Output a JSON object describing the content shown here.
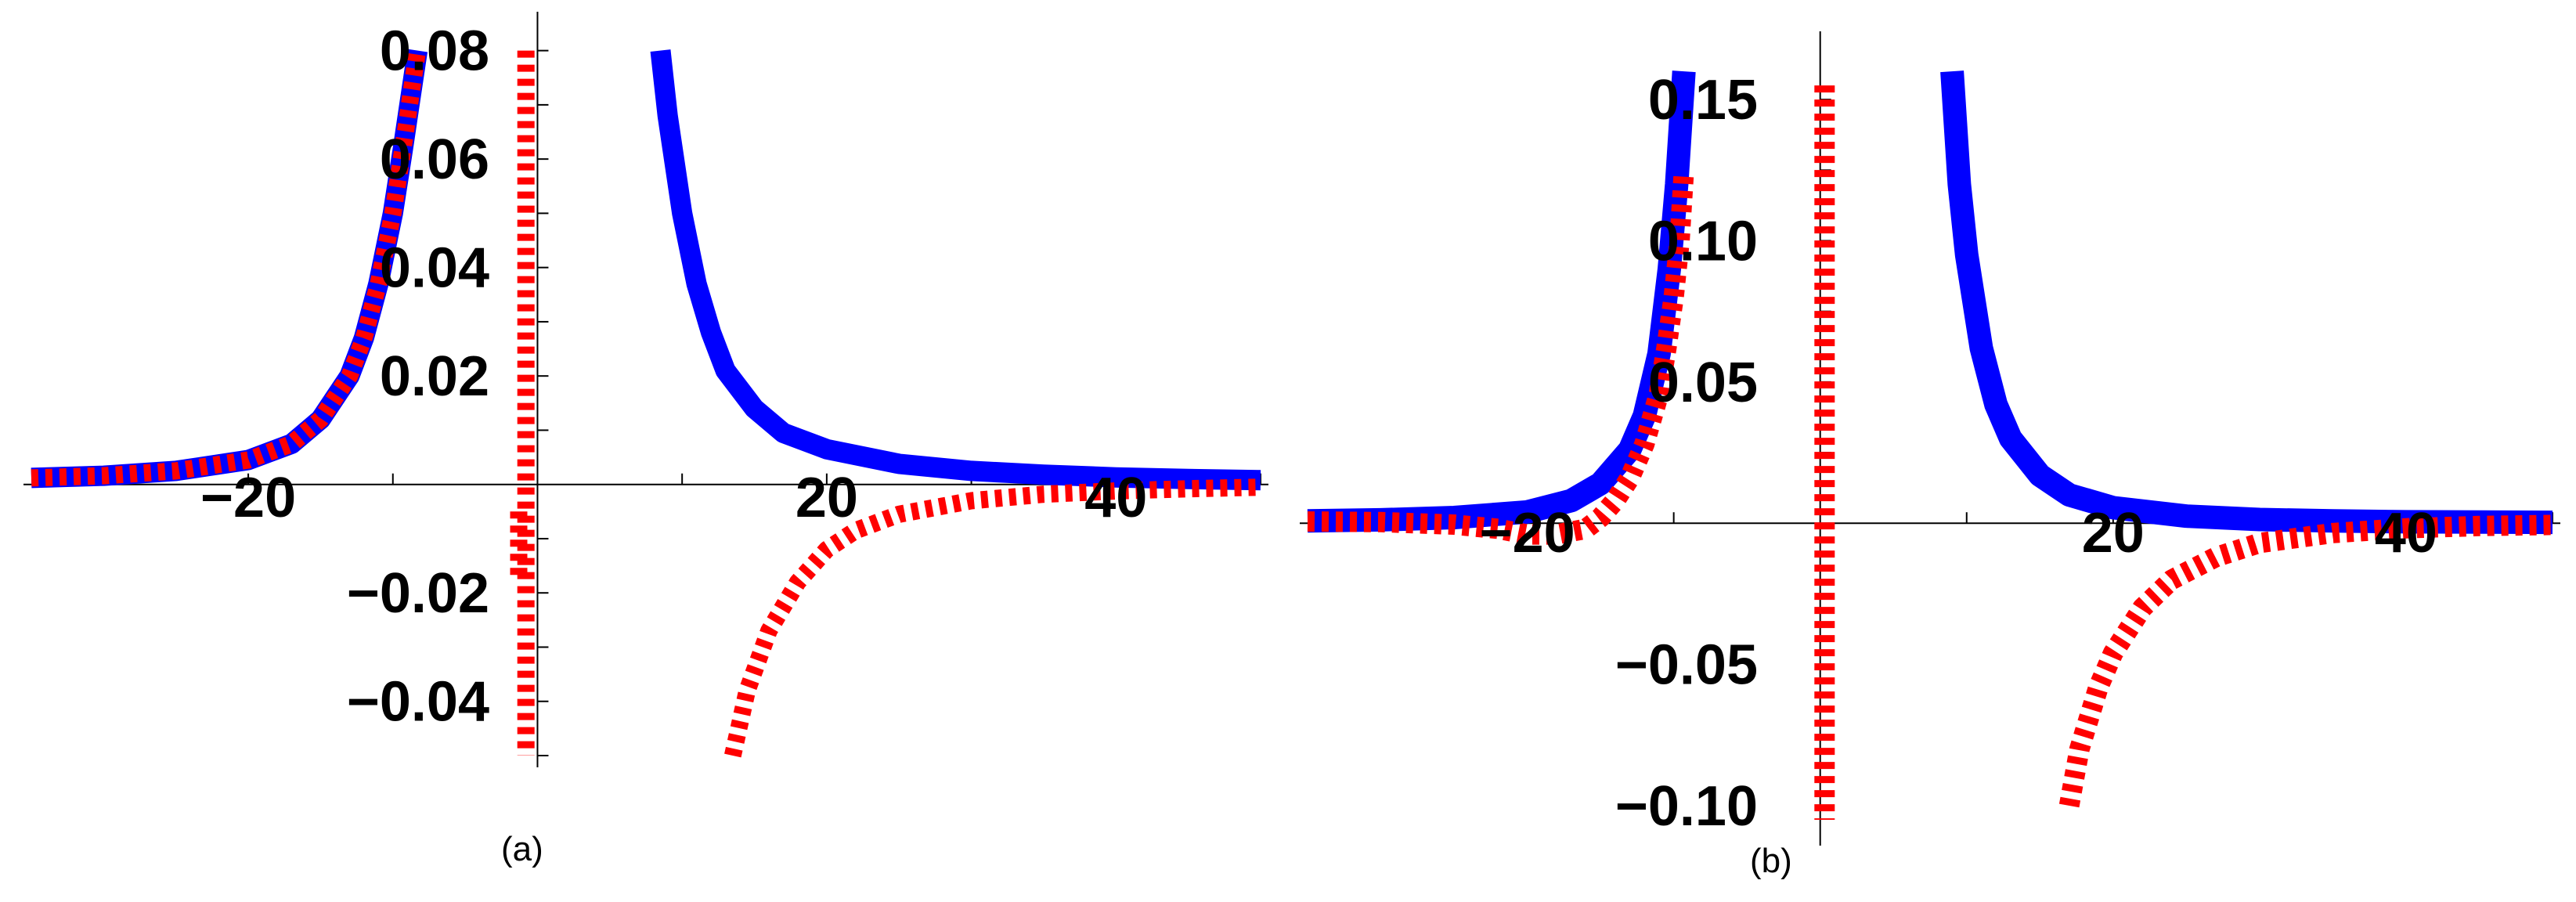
{
  "chart_data": [
    {
      "type": "line",
      "caption": "(a)",
      "xlim": [
        -35,
        50
      ],
      "ylim": [
        -0.05,
        0.085
      ],
      "xticks": [
        -20,
        20,
        40
      ],
      "xtick_labels": [
        "−20",
        "20",
        "40"
      ],
      "yticks": [
        -0.04,
        -0.02,
        0.02,
        0.04,
        0.06,
        0.08
      ],
      "ytick_labels": [
        "−0.04",
        "−0.02",
        "0.02",
        "0.04",
        "0.06",
        "0.08"
      ],
      "series": [
        {
          "style": "solid",
          "color": "#0000ff",
          "segments": [
            [
              [
                -35,
                0.0012
              ],
              [
                -30,
                0.0016
              ],
              [
                -25,
                0.0025
              ],
              [
                -20,
                0.0045
              ],
              [
                -17,
                0.0075
              ],
              [
                -15,
                0.012
              ],
              [
                -13,
                0.02
              ],
              [
                -12,
                0.027
              ],
              [
                -11,
                0.037
              ],
              [
                -10,
                0.05
              ],
              [
                -9.3,
                0.062
              ],
              [
                -8.8,
                0.071
              ],
              [
                -8.3,
                0.08
              ]
            ],
            [
              [
                8.5,
                0.08
              ],
              [
                9,
                0.068
              ],
              [
                10,
                0.05
              ],
              [
                11,
                0.037
              ],
              [
                12,
                0.028
              ],
              [
                13,
                0.021
              ],
              [
                15,
                0.014
              ],
              [
                17,
                0.0095
              ],
              [
                20,
                0.0065
              ],
              [
                25,
                0.0038
              ],
              [
                30,
                0.0025
              ],
              [
                35,
                0.0018
              ],
              [
                40,
                0.0013
              ],
              [
                45,
                0.001
              ],
              [
                50,
                0.0008
              ]
            ]
          ]
        },
        {
          "style": "dotted",
          "color": "#ff0000",
          "segments": [
            [
              [
                -35,
                0.0012
              ],
              [
                -30,
                0.0016
              ],
              [
                -25,
                0.0025
              ],
              [
                -20,
                0.0045
              ],
              [
                -17,
                0.0075
              ],
              [
                -15,
                0.012
              ],
              [
                -13,
                0.02
              ],
              [
                -12,
                0.027
              ],
              [
                -11,
                0.037
              ],
              [
                -10,
                0.05
              ],
              [
                -9.3,
                0.062
              ],
              [
                -8.8,
                0.071
              ],
              [
                -8.3,
                0.08
              ]
            ],
            [
              [
                -0.8,
                0.08
              ],
              [
                -0.8,
                -0.05
              ]
            ],
            [
              [
                -1.3,
                -0.005
              ],
              [
                -1.3,
                -0.017
              ]
            ],
            [
              [
                13.5,
                -0.05
              ],
              [
                14.5,
                -0.038
              ],
              [
                16,
                -0.027
              ],
              [
                18,
                -0.018
              ],
              [
                20,
                -0.012
              ],
              [
                22,
                -0.0085
              ],
              [
                25,
                -0.0055
              ],
              [
                30,
                -0.003
              ],
              [
                35,
                -0.0018
              ],
              [
                40,
                -0.0012
              ],
              [
                45,
                -0.0008
              ],
              [
                50,
                -0.0005
              ]
            ]
          ]
        }
      ]
    },
    {
      "type": "line",
      "caption": "(b)",
      "xlim": [
        -35,
        50
      ],
      "ylim": [
        -0.11,
        0.17
      ],
      "xticks": [
        -20,
        20,
        40
      ],
      "xtick_labels": [
        "−20",
        "20",
        "40"
      ],
      "yticks": [
        -0.1,
        -0.05,
        0.05,
        0.1,
        0.15
      ],
      "ytick_labels": [
        "−0.10",
        "−0.05",
        "0.05",
        "0.10",
        "0.15"
      ],
      "series": [
        {
          "style": "solid",
          "color": "#0000ff",
          "segments": [
            [
              [
                -35,
                0.0008
              ],
              [
                -30,
                0.0012
              ],
              [
                -25,
                0.002
              ],
              [
                -20,
                0.004
              ],
              [
                -17,
                0.008
              ],
              [
                -15,
                0.014
              ],
              [
                -13,
                0.026
              ],
              [
                -12,
                0.038
              ],
              [
                -11,
                0.06
              ],
              [
                -10.3,
                0.09
              ],
              [
                -9.8,
                0.12
              ],
              [
                -9.3,
                0.16
              ]
            ],
            [
              [
                9,
                0.16
              ],
              [
                9.5,
                0.12
              ],
              [
                10,
                0.095
              ],
              [
                11,
                0.062
              ],
              [
                12,
                0.042
              ],
              [
                13,
                0.03
              ],
              [
                15,
                0.017
              ],
              [
                17,
                0.01
              ],
              [
                20,
                0.0055
              ],
              [
                25,
                0.0025
              ],
              [
                30,
                0.0013
              ],
              [
                35,
                0.0008
              ],
              [
                40,
                0.0005
              ],
              [
                50,
                0.0003
              ]
            ]
          ]
        },
        {
          "style": "dotted",
          "color": "#ff0000",
          "segments": [
            [
              [
                -35,
                0.0006
              ],
              [
                -30,
                0.0004
              ],
              [
                -25,
                -0.0005
              ],
              [
                -22,
                -0.002
              ],
              [
                -20,
                -0.004
              ],
              [
                -18,
                -0.004
              ],
              [
                -16,
                -0.002
              ],
              [
                -15,
                0.002
              ],
              [
                -14,
                0.008
              ],
              [
                -13,
                0.016
              ],
              [
                -12,
                0.028
              ],
              [
                -11,
                0.046
              ],
              [
                -10.5,
                0.062
              ],
              [
                -10,
                0.08
              ],
              [
                -9.6,
                0.1
              ],
              [
                -9.3,
                0.125
              ]
            ],
            [
              [
                0.3,
                0.155
              ],
              [
                0.3,
                -0.105
              ]
            ],
            [
              [
                17,
                -0.1
              ],
              [
                17.7,
                -0.08
              ],
              [
                19,
                -0.058
              ],
              [
                20,
                -0.046
              ],
              [
                22,
                -0.03
              ],
              [
                24,
                -0.02
              ],
              [
                27,
                -0.012
              ],
              [
                30,
                -0.007
              ],
              [
                35,
                -0.0035
              ],
              [
                40,
                -0.0018
              ],
              [
                45,
                -0.001
              ],
              [
                50,
                -0.0006
              ]
            ]
          ]
        }
      ]
    }
  ]
}
